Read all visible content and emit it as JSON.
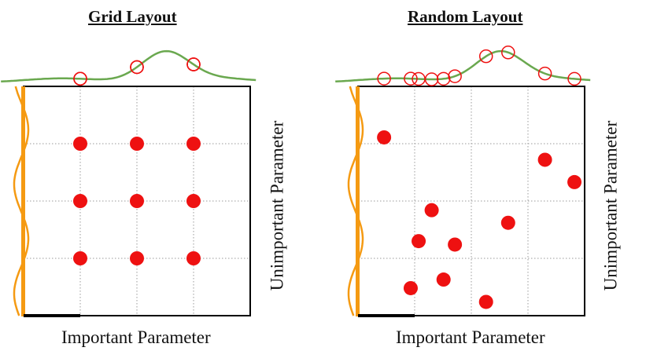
{
  "panels": [
    {
      "title": "Grid Layout",
      "xlabel": "Important Parameter",
      "ylabel": "Unimportant Parameter",
      "points": [
        {
          "x": 1,
          "y": 1
        },
        {
          "x": 2,
          "y": 1
        },
        {
          "x": 3,
          "y": 1
        },
        {
          "x": 1,
          "y": 2
        },
        {
          "x": 2,
          "y": 2
        },
        {
          "x": 3,
          "y": 2
        },
        {
          "x": 1,
          "y": 3
        },
        {
          "x": 2,
          "y": 3
        },
        {
          "x": 3,
          "y": 3
        }
      ]
    },
    {
      "title": "Random Layout",
      "xlabel": "Important Parameter",
      "ylabel": "Unimportant Parameter",
      "points": [
        {
          "x": 0.93,
          "y": 0.48
        },
        {
          "x": 1.07,
          "y": 1.3
        },
        {
          "x": 1.3,
          "y": 1.84
        },
        {
          "x": 1.71,
          "y": 1.24
        },
        {
          "x": 1.51,
          "y": 0.63
        },
        {
          "x": 0.46,
          "y": 3.11
        },
        {
          "x": 2.26,
          "y": 0.24
        },
        {
          "x": 2.65,
          "y": 1.62
        },
        {
          "x": 3.3,
          "y": 2.72
        },
        {
          "x": 3.82,
          "y": 2.33
        }
      ]
    }
  ],
  "colors": {
    "points": "#ee1111",
    "important_curve": "#6aa84f",
    "unimportant_curve": "#f59a12",
    "grid": "#9a9a9a"
  }
}
